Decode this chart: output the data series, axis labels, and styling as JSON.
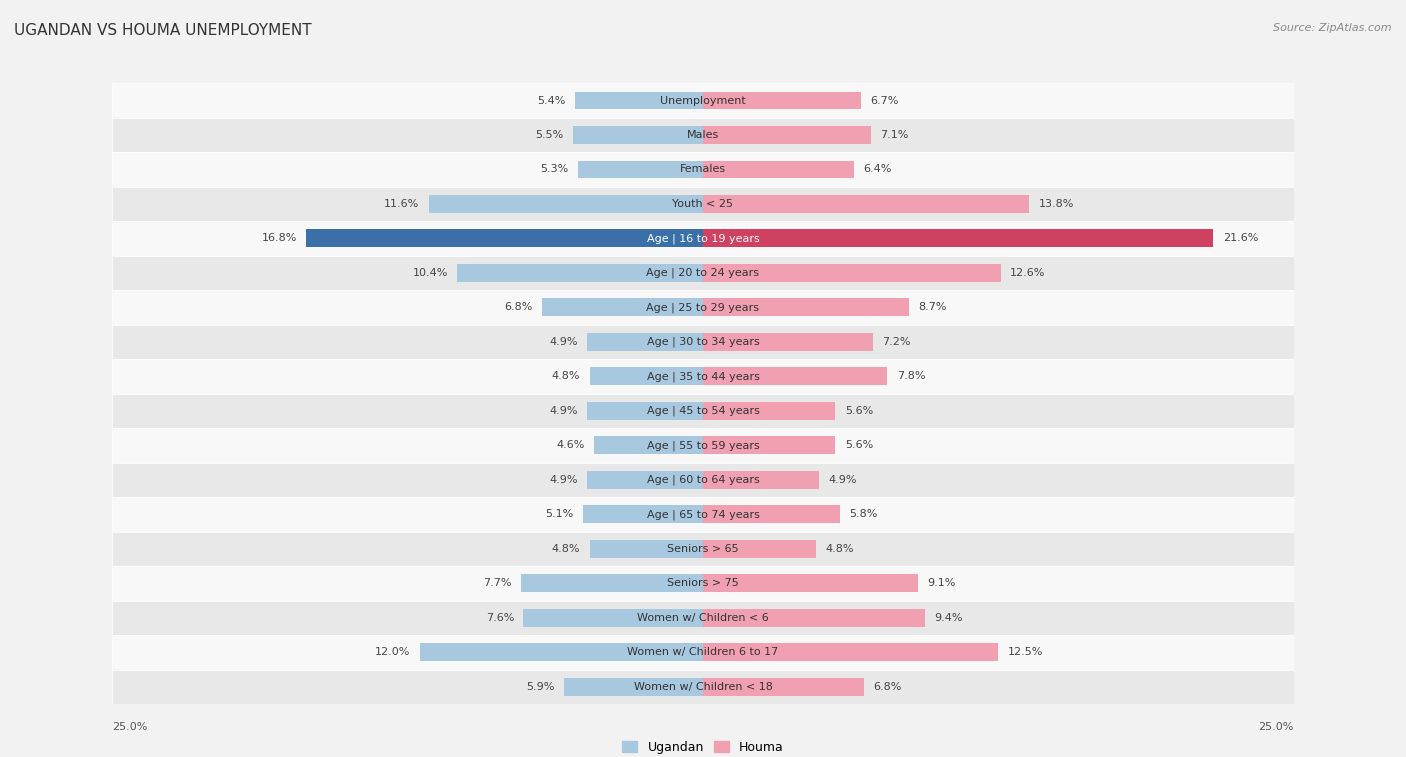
{
  "title": "UGANDAN VS HOUMA UNEMPLOYMENT",
  "source": "Source: ZipAtlas.com",
  "categories": [
    "Unemployment",
    "Males",
    "Females",
    "Youth < 25",
    "Age | 16 to 19 years",
    "Age | 20 to 24 years",
    "Age | 25 to 29 years",
    "Age | 30 to 34 years",
    "Age | 35 to 44 years",
    "Age | 45 to 54 years",
    "Age | 55 to 59 years",
    "Age | 60 to 64 years",
    "Age | 65 to 74 years",
    "Seniors > 65",
    "Seniors > 75",
    "Women w/ Children < 6",
    "Women w/ Children 6 to 17",
    "Women w/ Children < 18"
  ],
  "ugandan": [
    5.4,
    5.5,
    5.3,
    11.6,
    16.8,
    10.4,
    6.8,
    4.9,
    4.8,
    4.9,
    4.6,
    4.9,
    5.1,
    4.8,
    7.7,
    7.6,
    12.0,
    5.9
  ],
  "houma": [
    6.7,
    7.1,
    6.4,
    13.8,
    21.6,
    12.6,
    8.7,
    7.2,
    7.8,
    5.6,
    5.6,
    4.9,
    5.8,
    4.8,
    9.1,
    9.4,
    12.5,
    6.8
  ],
  "ugandan_color": "#a8c8e0",
  "houma_color": "#f0a0b0",
  "highlight_ugandan_color": "#3a6fa8",
  "highlight_houma_color": "#d04060",
  "highlight_row": 4,
  "bar_height": 0.52,
  "xlim": 25.0,
  "bg_color": "#f2f2f2",
  "row_bg_light": "#f8f8f8",
  "row_bg_dark": "#e8e8e8",
  "legend_ugandan": "Ugandan",
  "legend_houma": "Houma",
  "title_fontsize": 11,
  "source_fontsize": 8,
  "label_fontsize": 8,
  "value_fontsize": 8
}
